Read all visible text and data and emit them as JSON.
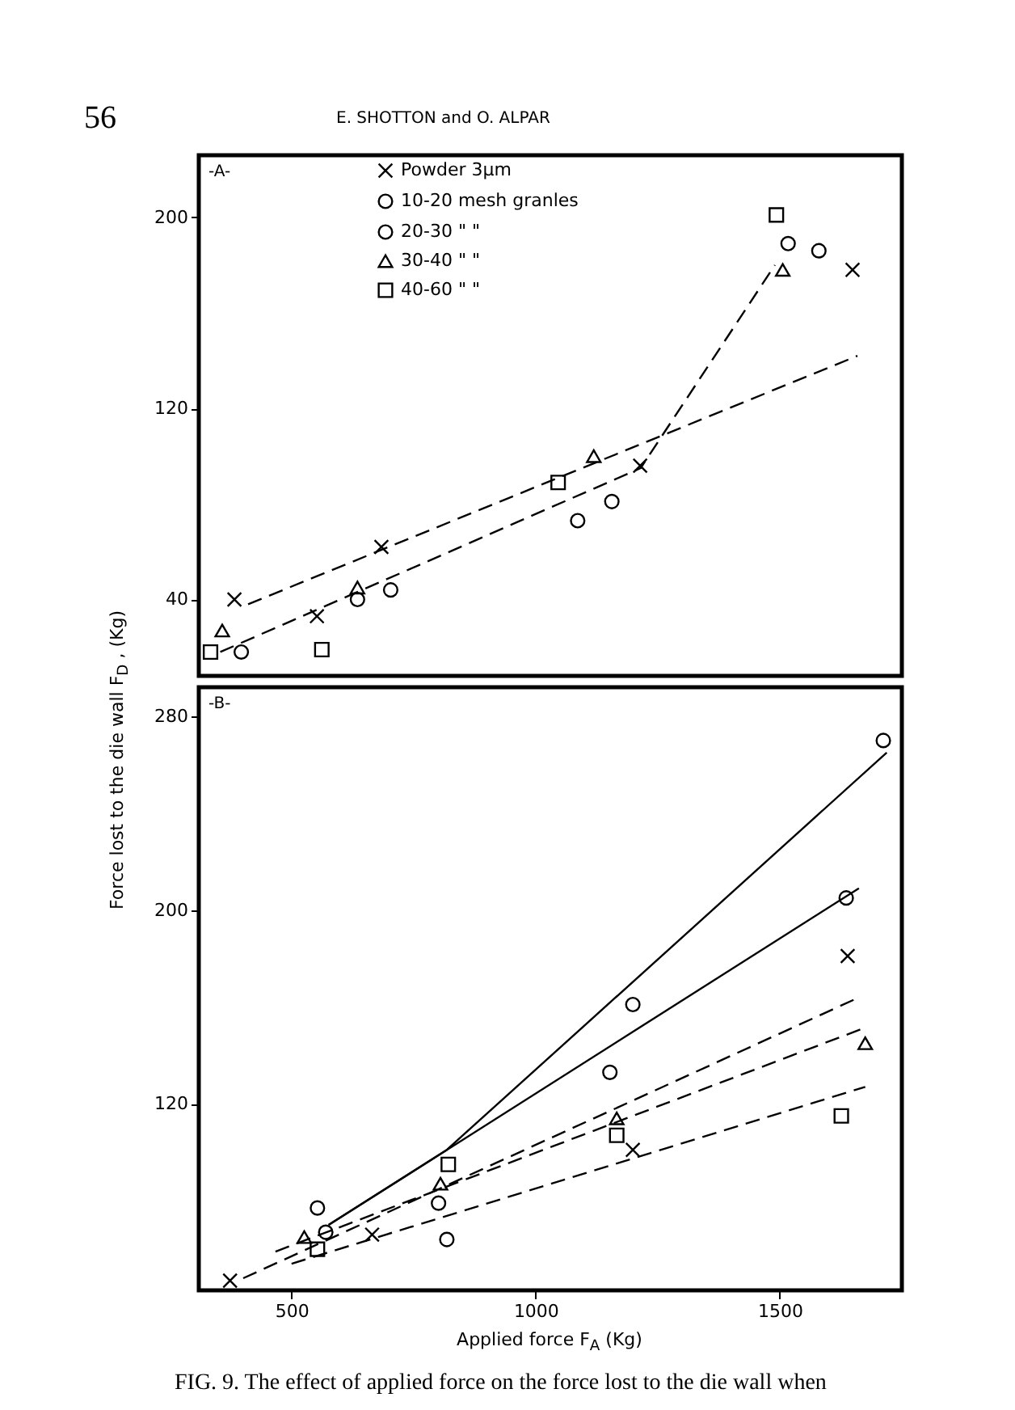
{
  "chart_data": [
    {
      "type": "scatter",
      "title": "-A-",
      "annotations": [
        "56",
        "E. SHOTTON and O. ALPAR"
      ],
      "xlim": [
        310,
        1750
      ],
      "xticks": [
        500,
        1000,
        1500
      ],
      "ylim": [
        8,
        226
      ],
      "yticks": [
        40,
        120,
        200
      ],
      "tick_labels": "y",
      "legend": "top",
      "series": [
        {
          "type": "scatter",
          "name": "Powder 3μm",
          "color": "#000000",
          "marker": "cross",
          "x": [
            383,
            552,
            684,
            1214,
            1649
          ],
          "values": [
            40,
            33,
            62,
            96,
            178
          ]
        },
        {
          "type": "scatter",
          "name": "10-20 mesh granles",
          "color": "#000000",
          "marker": "circle"
        },
        {
          "type": "scatter",
          "name": "20-30 \" \"",
          "color": "#000000",
          "marker": "circle",
          "x": [
            397,
            635,
            703,
            1086,
            1156,
            1517,
            1580
          ],
          "values": [
            18,
            40,
            44,
            73,
            81,
            189,
            186
          ]
        },
        {
          "type": "scatter",
          "name": "30-40 \" \"",
          "color": "#000000",
          "marker": "triangle",
          "x": [
            358,
            635,
            1119,
            1506
          ],
          "values": [
            27,
            45,
            100,
            178
          ]
        },
        {
          "type": "scatter",
          "name": "40-60 \" \"",
          "color": "#000000",
          "marker": "square",
          "x": [
            334,
            562,
            1046,
            1493
          ],
          "values": [
            18,
            19,
            89,
            201
          ]
        },
        {
          "type": "line",
          "color": "#000000",
          "line_style": "dashed",
          "x": [
            411,
            1659
          ],
          "values": [
            38,
            142
          ]
        },
        {
          "type": "line",
          "color": "#000000",
          "line_style": "dashed",
          "x": [
            354,
            1215,
            1490
          ],
          "values": [
            18,
            95,
            180
          ]
        }
      ]
    },
    {
      "type": "scatter",
      "title": "-B-",
      "xlabel": "Applied force F$_{A}$ (Kg)",
      "ylabel": "Force lost to the die wall F$_{D}$ , (Kg)",
      "annotations": [
        "FIG. 9. The effect of applied force on the force lost to the die wall when"
      ],
      "xlim": [
        310,
        1750
      ],
      "xticks": [
        500,
        1000,
        1500
      ],
      "ylim": [
        43,
        292
      ],
      "yticks": [
        120,
        200,
        280
      ],
      "series": [
        {
          "type": "scatter",
          "color": "#000000",
          "marker": "cross",
          "x": [
            374,
            665,
            1199,
            1639
          ],
          "values": [
            47,
            66,
            101,
            181
          ]
        },
        {
          "type": "scatter",
          "color": "#000000",
          "marker": "circle",
          "x": [
            553,
            801,
            1152,
            1712
          ],
          "values": [
            77,
            79,
            133,
            270
          ]
        },
        {
          "type": "scatter",
          "color": "#000000",
          "marker": "circle",
          "x": [
            570,
            818,
            1199,
            1636
          ],
          "values": [
            67,
            64,
            161,
            205
          ]
        },
        {
          "type": "scatter",
          "color": "#000000",
          "marker": "triangle",
          "x": [
            526,
            805,
            1166,
            1675
          ],
          "values": [
            65,
            87,
            114,
            145
          ]
        },
        {
          "type": "scatter",
          "color": "#000000",
          "marker": "square",
          "x": [
            553,
            821,
            1166,
            1626
          ],
          "values": [
            60,
            95,
            107,
            115
          ]
        },
        {
          "type": "line",
          "color": "#000000",
          "line_style": "solid",
          "x": [
            576,
            818,
            1719
          ],
          "values": [
            70,
            101,
            265
          ]
        },
        {
          "type": "line",
          "color": "#000000",
          "line_style": "solid",
          "x": [
            576,
            1662
          ],
          "values": [
            70,
            209
          ]
        },
        {
          "type": "line",
          "color": "#000000",
          "line_style": "dashed",
          "x": [
            401,
            1652
          ],
          "values": [
            48,
            163
          ]
        },
        {
          "type": "line",
          "color": "#000000",
          "line_style": "dashed",
          "x": [
            467,
            1669
          ],
          "values": [
            59,
            151
          ]
        },
        {
          "type": "line",
          "color": "#000000",
          "line_style": "dashed",
          "x": [
            500,
            1675
          ],
          "values": [
            54,
            127
          ]
        }
      ]
    }
  ]
}
